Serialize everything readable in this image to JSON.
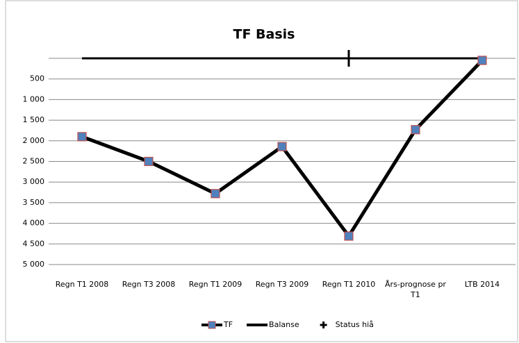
{
  "chart_data": {
    "type": "line",
    "title": "TF Basis",
    "categories": [
      "Regn T1 2008",
      "Regn T3 2008",
      "Regn T1 2009",
      "Regn T3 2009",
      "Regn T1 2010",
      "Års-prognose pr T1",
      "LTB 2014"
    ],
    "series": [
      {
        "name": "TF",
        "color": "#000000",
        "marker_color": "#4f81bd",
        "marker_edge": "#c0504d",
        "marker": "square",
        "values": [
          1900,
          2500,
          3280,
          2140,
          4310,
          1730,
          50
        ]
      },
      {
        "name": "Balanse",
        "color": "#000000",
        "marker": "none",
        "values": [
          0,
          0,
          0,
          0,
          0,
          0,
          0
        ]
      },
      {
        "name": "Status hiå",
        "color": "#000000",
        "marker": "plus",
        "line": false,
        "values": [
          null,
          null,
          null,
          null,
          0,
          null,
          null
        ]
      }
    ],
    "ylim": [
      0,
      5000
    ],
    "y_reversed": true,
    "yticks": [
      500,
      {
        "value": 1000,
        "label": "1 000"
      },
      {
        "value": 1500,
        "label": "1 500"
      },
      {
        "value": 2000,
        "label": "2 000"
      },
      {
        "value": 2500,
        "label": "2 500"
      },
      {
        "value": 3000,
        "label": "3 000"
      },
      {
        "value": 3500,
        "label": "3 500"
      },
      {
        "value": 4000,
        "label": "4 000"
      },
      {
        "value": 4500,
        "label": "4 500"
      },
      {
        "value": 5000,
        "label": "5 000"
      }
    ],
    "grid": true,
    "legend": "bottom"
  }
}
